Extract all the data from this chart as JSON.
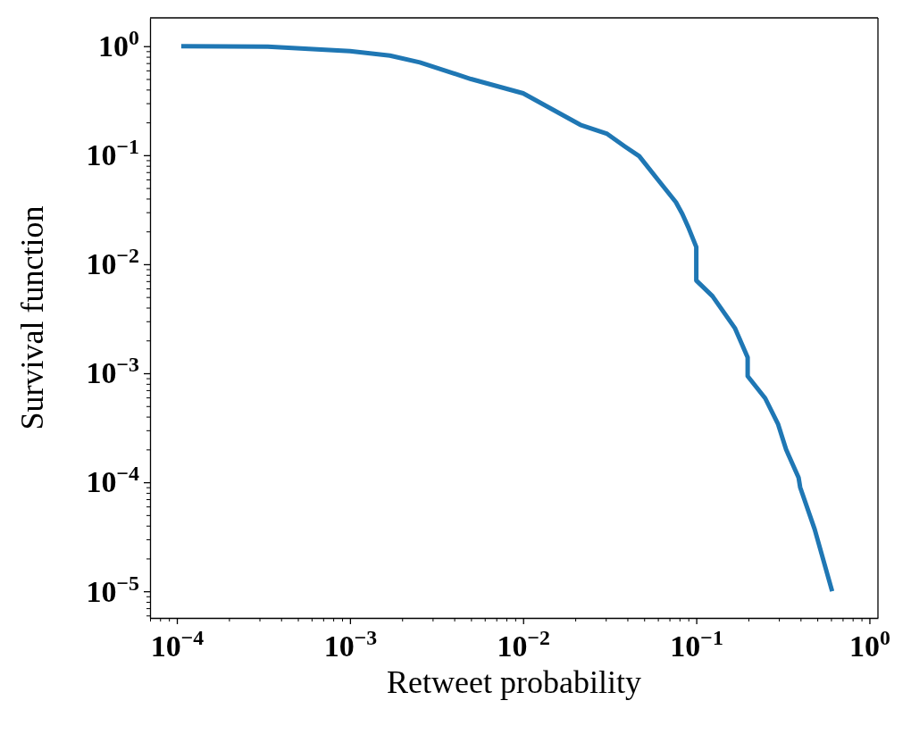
{
  "chart_data": {
    "type": "line",
    "xlabel": "Retweet probability",
    "ylabel": "Survival function",
    "log": "xy",
    "grid": false,
    "marker": "none",
    "line_style": "solid",
    "xlim": [
      7e-05,
      1.12
    ],
    "ylim": [
      5.7e-06,
      1.82
    ],
    "xticks": [
      {
        "value": 7e-05,
        "label": null
      },
      {
        "value": 8e-05,
        "label": null
      },
      {
        "value": 9e-05,
        "label": null
      },
      {
        "value": 0.0001,
        "label": "10$^{−4}$"
      },
      {
        "value": 0.0002,
        "label": null
      },
      {
        "value": 0.0003,
        "label": null
      },
      {
        "value": 0.0004,
        "label": null
      },
      {
        "value": 0.0005,
        "label": null
      },
      {
        "value": 0.0006,
        "label": null
      },
      {
        "value": 0.0007,
        "label": null
      },
      {
        "value": 0.0008,
        "label": null
      },
      {
        "value": 0.0009,
        "label": null
      },
      {
        "value": 0.001,
        "label": "10$^{−3}$"
      },
      {
        "value": 0.002,
        "label": null
      },
      {
        "value": 0.003,
        "label": null
      },
      {
        "value": 0.004,
        "label": null
      },
      {
        "value": 0.005,
        "label": null
      },
      {
        "value": 0.006,
        "label": null
      },
      {
        "value": 0.007,
        "label": null
      },
      {
        "value": 0.008,
        "label": null
      },
      {
        "value": 0.009,
        "label": null
      },
      {
        "value": 0.01,
        "label": "10$^{−2}$"
      },
      {
        "value": 0.02,
        "label": null
      },
      {
        "value": 0.03,
        "label": null
      },
      {
        "value": 0.04,
        "label": null
      },
      {
        "value": 0.05,
        "label": null
      },
      {
        "value": 0.06,
        "label": null
      },
      {
        "value": 0.07,
        "label": null
      },
      {
        "value": 0.08,
        "label": null
      },
      {
        "value": 0.09,
        "label": null
      },
      {
        "value": 0.1,
        "label": "10$^{−1}$"
      },
      {
        "value": 0.2,
        "label": null
      },
      {
        "value": 0.3,
        "label": null
      },
      {
        "value": 0.4,
        "label": null
      },
      {
        "value": 0.5,
        "label": null
      },
      {
        "value": 0.6,
        "label": null
      },
      {
        "value": 0.7,
        "label": null
      },
      {
        "value": 0.8,
        "label": null
      },
      {
        "value": 0.9,
        "label": null
      },
      {
        "value": 1,
        "label": "10$^{0}$"
      }
    ],
    "yticks": [
      {
        "value": 6e-06,
        "label": null
      },
      {
        "value": 7e-06,
        "label": null
      },
      {
        "value": 8e-06,
        "label": null
      },
      {
        "value": 9e-06,
        "label": null
      },
      {
        "value": 1e-05,
        "label": "10$^{−5}$"
      },
      {
        "value": 2e-05,
        "label": null
      },
      {
        "value": 3e-05,
        "label": null
      },
      {
        "value": 4e-05,
        "label": null
      },
      {
        "value": 5e-05,
        "label": null
      },
      {
        "value": 6e-05,
        "label": null
      },
      {
        "value": 7e-05,
        "label": null
      },
      {
        "value": 8e-05,
        "label": null
      },
      {
        "value": 9e-05,
        "label": null
      },
      {
        "value": 0.0001,
        "label": "10$^{−4}$"
      },
      {
        "value": 0.0002,
        "label": null
      },
      {
        "value": 0.0003,
        "label": null
      },
      {
        "value": 0.0004,
        "label": null
      },
      {
        "value": 0.0005,
        "label": null
      },
      {
        "value": 0.0006,
        "label": null
      },
      {
        "value": 0.0007,
        "label": null
      },
      {
        "value": 0.0008,
        "label": null
      },
      {
        "value": 0.0009,
        "label": null
      },
      {
        "value": 0.001,
        "label": "10$^{−3}$"
      },
      {
        "value": 0.002,
        "label": null
      },
      {
        "value": 0.003,
        "label": null
      },
      {
        "value": 0.004,
        "label": null
      },
      {
        "value": 0.005,
        "label": null
      },
      {
        "value": 0.006,
        "label": null
      },
      {
        "value": 0.007,
        "label": null
      },
      {
        "value": 0.008,
        "label": null
      },
      {
        "value": 0.009,
        "label": null
      },
      {
        "value": 0.01,
        "label": "10$^{−2}$"
      },
      {
        "value": 0.02,
        "label": null
      },
      {
        "value": 0.03,
        "label": null
      },
      {
        "value": 0.04,
        "label": null
      },
      {
        "value": 0.05,
        "label": null
      },
      {
        "value": 0.06,
        "label": null
      },
      {
        "value": 0.07,
        "label": null
      },
      {
        "value": 0.08,
        "label": null
      },
      {
        "value": 0.09,
        "label": null
      },
      {
        "value": 0.1,
        "label": "10$^{−1}$"
      },
      {
        "value": 0.2,
        "label": null
      },
      {
        "value": 0.3,
        "label": null
      },
      {
        "value": 0.4,
        "label": null
      },
      {
        "value": 0.5,
        "label": null
      },
      {
        "value": 0.6,
        "label": null
      },
      {
        "value": 0.7,
        "label": null
      },
      {
        "value": 0.8,
        "label": null
      },
      {
        "value": 0.9,
        "label": null
      },
      {
        "value": 1,
        "label": "10$^{0}$"
      }
    ],
    "series": [
      {
        "color": "#1f77b4",
        "x": [
          0.000106,
          0.000335,
          0.001,
          0.0017,
          0.00253,
          0.005,
          0.01,
          0.0214,
          0.0306,
          0.0388,
          0.0468,
          0.0603,
          0.0763,
          0.083,
          0.0903,
          0.1,
          0.1,
          0.124,
          0.167,
          0.198,
          0.198,
          0.25,
          0.297,
          0.33,
          0.39,
          0.398,
          0.483,
          0.609
        ],
        "values": [
          1.0,
          0.99,
          0.9,
          0.82,
          0.71,
          0.5,
          0.37,
          0.19,
          0.157,
          0.12,
          0.098,
          0.059,
          0.037,
          0.029,
          0.0215,
          0.0144,
          0.0071,
          0.0051,
          0.0026,
          0.0014,
          0.00094,
          0.00059,
          0.00034,
          0.0002,
          0.00011,
          9e-05,
          3.7e-05,
          1e-05
        ]
      }
    ]
  }
}
